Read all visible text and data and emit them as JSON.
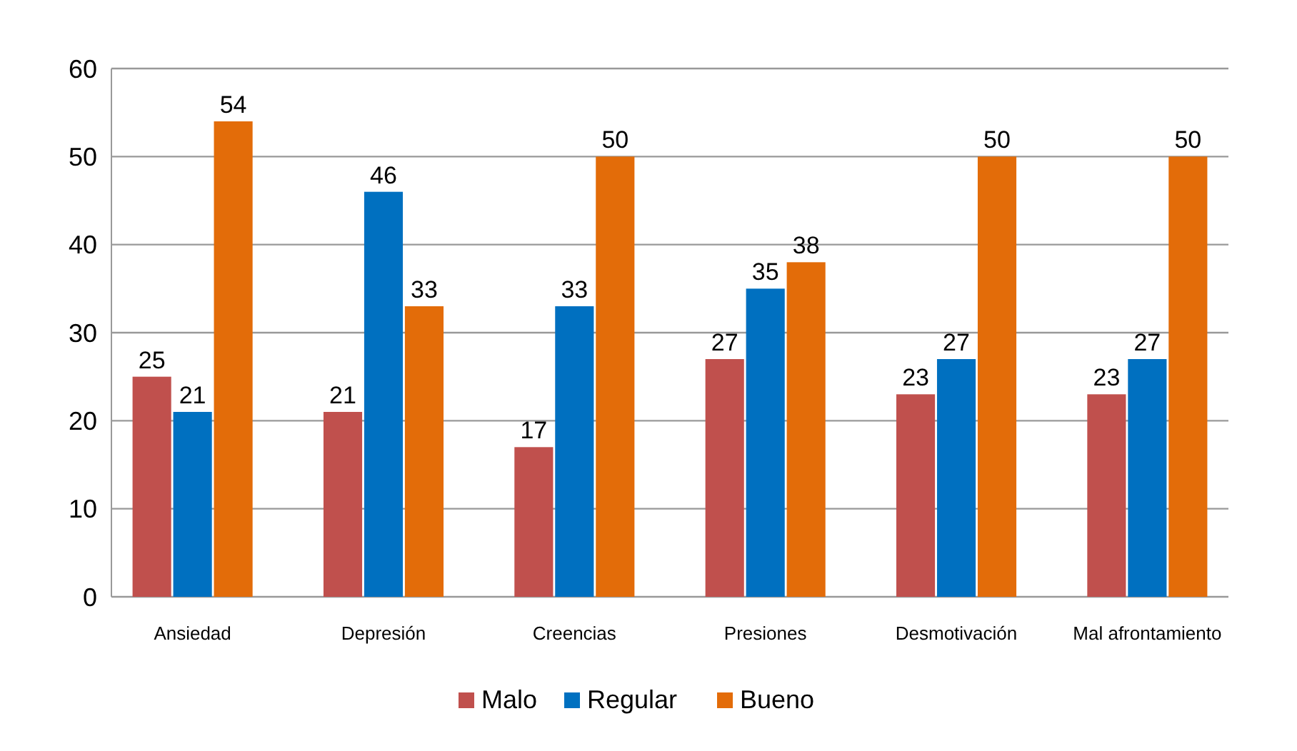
{
  "chart_data": {
    "type": "bar",
    "categories": [
      "Ansiedad",
      "Depresión",
      "Creencias",
      "Presiones",
      "Desmotivación",
      "Mal afrontamiento"
    ],
    "series": [
      {
        "name": "Malo",
        "color": "#c0504d",
        "values": [
          25,
          21,
          17,
          27,
          23,
          23
        ]
      },
      {
        "name": "Regular",
        "color": "#0070c0",
        "values": [
          21,
          46,
          33,
          35,
          27,
          27
        ]
      },
      {
        "name": "Bueno",
        "color": "#e36c09",
        "values": [
          54,
          33,
          50,
          38,
          50,
          50
        ]
      }
    ],
    "ylim": [
      0,
      60
    ],
    "yticks": [
      0,
      10,
      20,
      30,
      40,
      50,
      60
    ],
    "grid": "y",
    "legend": "bottom",
    "data_labels": true
  }
}
